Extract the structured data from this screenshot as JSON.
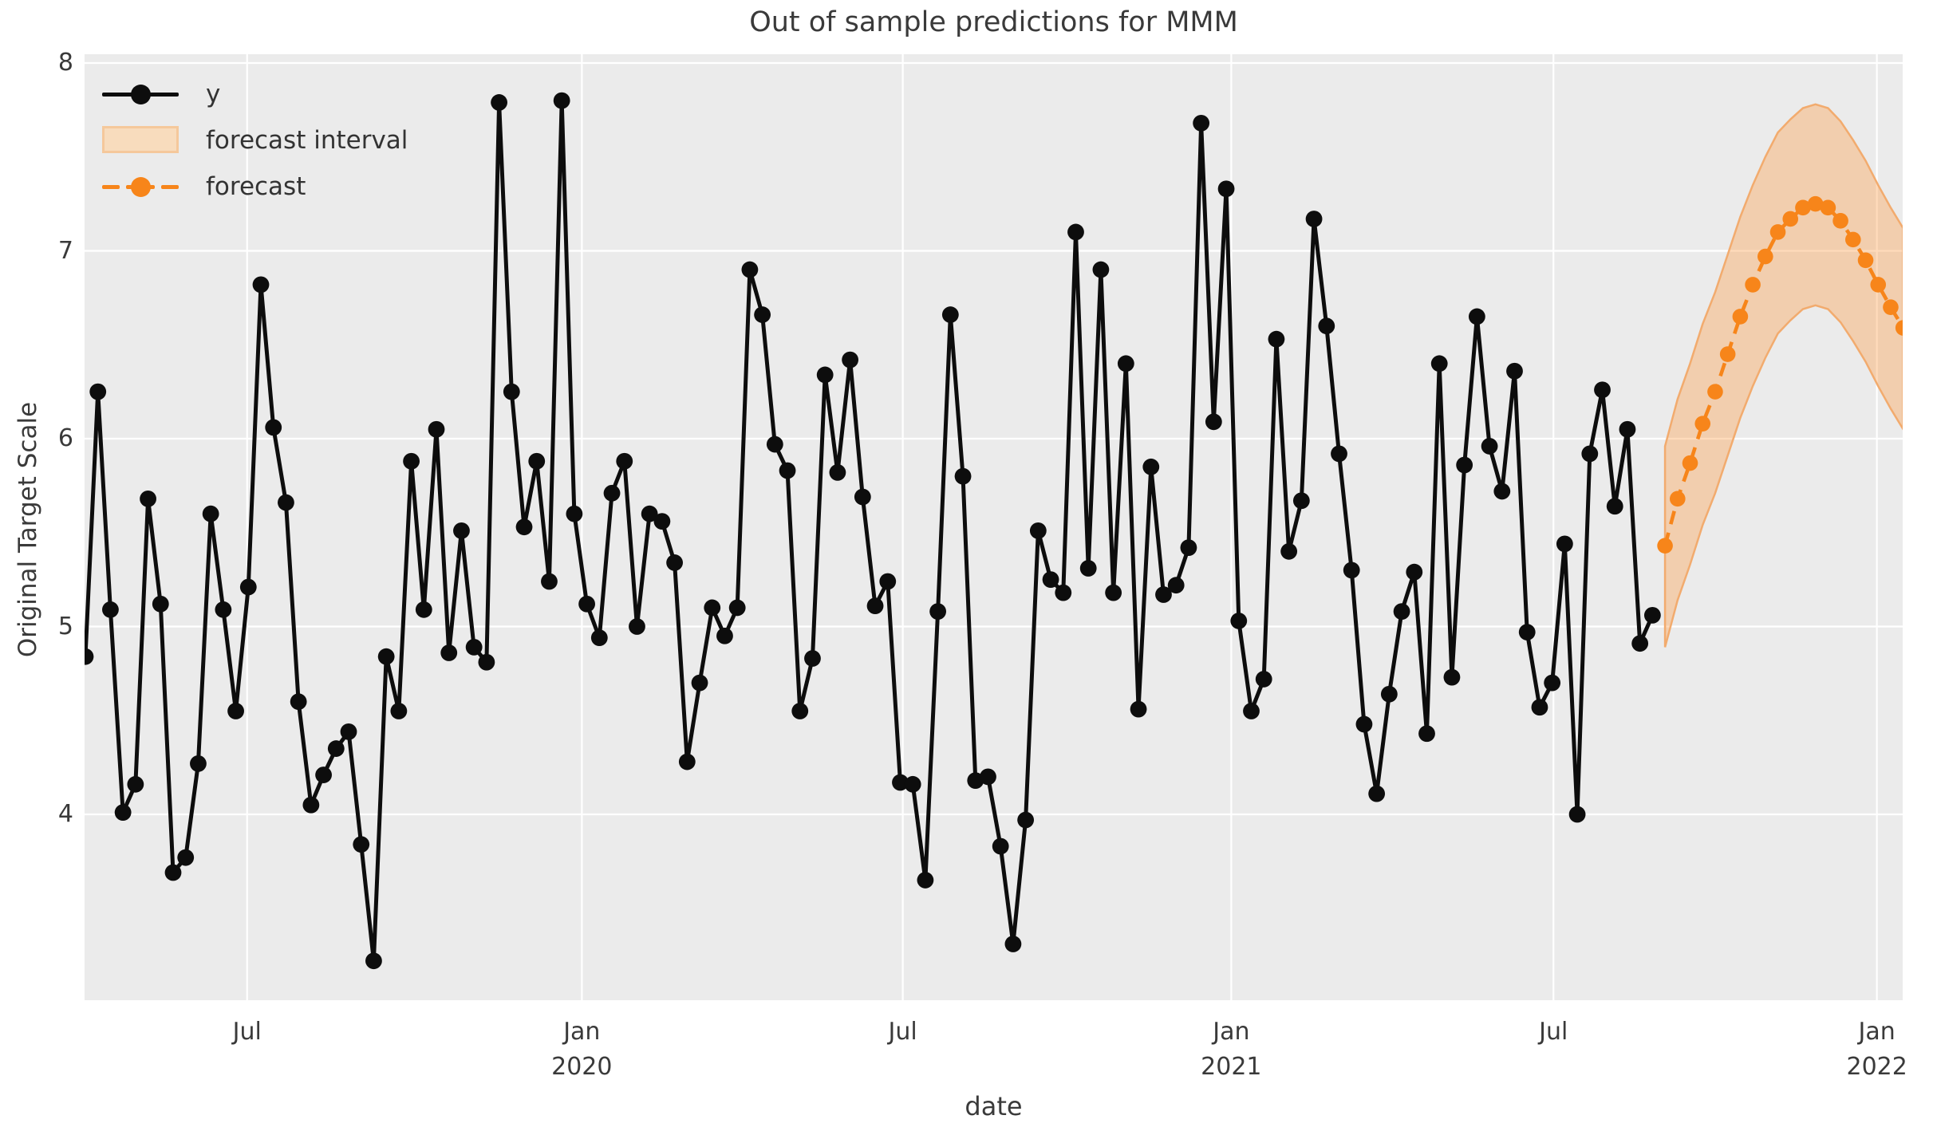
{
  "figure": {
    "title": "Out of sample predictions for MMM"
  },
  "legend": {
    "items": [
      {
        "label": "y",
        "type": "line-marker",
        "color": "#0d0d0d"
      },
      {
        "label": "forecast interval",
        "type": "patch",
        "fill": "#f8dcbd",
        "edge": "#f5c89b"
      },
      {
        "label": "forecast",
        "type": "dashed-marker",
        "color": "#f7851a"
      }
    ]
  },
  "chart_data": {
    "type": "line",
    "title": "Out of sample predictions for MMM",
    "xlabel": "date",
    "ylabel": "Original Target Scale",
    "grid": true,
    "legend_position": "upper left",
    "plot_bg": "#ebebeb",
    "grid_color": "#ffffff",
    "ylim": [
      3.0,
      8.05
    ],
    "y_ticks": [
      4,
      5,
      6,
      7,
      8
    ],
    "x_ticks": [
      {
        "week": 12.9,
        "lines": [
          "Jul"
        ]
      },
      {
        "week": 39.6,
        "lines": [
          "Jan",
          "2020"
        ]
      },
      {
        "week": 65.2,
        "lines": [
          "Jul"
        ]
      },
      {
        "week": 91.4,
        "lines": [
          "Jan",
          "2021"
        ]
      },
      {
        "week": 117.1,
        "lines": [
          "Jul"
        ]
      },
      {
        "week": 142.9,
        "lines": [
          "Jan",
          "2022"
        ]
      }
    ],
    "series": [
      {
        "name": "y",
        "style": "solid",
        "color": "#0d0d0d",
        "marker": true,
        "start_week": 0,
        "values": [
          4.84,
          6.25,
          5.09,
          4.01,
          4.16,
          5.68,
          5.12,
          3.69,
          3.77,
          4.27,
          5.6,
          5.09,
          4.55,
          5.21,
          6.82,
          6.06,
          5.66,
          4.6,
          4.05,
          4.21,
          4.35,
          4.44,
          3.84,
          3.22,
          4.84,
          4.55,
          5.88,
          5.09,
          6.05,
          4.86,
          5.51,
          4.89,
          4.81,
          7.79,
          6.25,
          5.53,
          5.88,
          5.24,
          7.8,
          5.6,
          5.12,
          4.94,
          5.71,
          5.88,
          5.0,
          5.6,
          5.56,
          5.34,
          4.28,
          4.7,
          5.1,
          4.95,
          5.1,
          6.9,
          6.66,
          5.97,
          5.83,
          4.55,
          4.83,
          6.34,
          5.82,
          6.42,
          5.69,
          5.11,
          5.24,
          4.17,
          4.16,
          3.65,
          5.08,
          6.66,
          5.8,
          4.18,
          4.2,
          3.83,
          3.31,
          3.97,
          5.51,
          5.25,
          5.18,
          7.1,
          5.31,
          6.9,
          5.18,
          6.4,
          4.56,
          5.85,
          5.17,
          5.22,
          5.42,
          7.68,
          6.09,
          7.33,
          5.03,
          4.55,
          4.72,
          6.53,
          5.4,
          5.67,
          7.17,
          6.6,
          5.92,
          5.3,
          4.48,
          4.11,
          4.64,
          5.08,
          5.29,
          4.43,
          6.4,
          4.73,
          5.86,
          6.65,
          5.96,
          5.72,
          6.36,
          4.97,
          4.57,
          4.7,
          5.44,
          4.0,
          5.92,
          6.26,
          5.64,
          6.05,
          4.91,
          5.06
        ]
      },
      {
        "name": "forecast",
        "style": "dashed",
        "color": "#f7851a",
        "marker": true,
        "start_week": 126,
        "values": [
          5.43,
          5.68,
          5.87,
          6.08,
          6.25,
          6.45,
          6.65,
          6.82,
          6.97,
          7.1,
          7.17,
          7.23,
          7.25,
          7.23,
          7.16,
          7.06,
          6.95,
          6.82,
          6.7,
          6.59
        ]
      }
    ],
    "band": {
      "name": "forecast interval",
      "start_week": 126,
      "fill": "#ffa04d",
      "fill_opacity": 0.38,
      "edge": "#f2ab6e",
      "lower": [
        4.89,
        5.14,
        5.33,
        5.54,
        5.71,
        5.91,
        6.11,
        6.28,
        6.43,
        6.56,
        6.63,
        6.69,
        6.71,
        6.69,
        6.62,
        6.52,
        6.41,
        6.28,
        6.16,
        6.05
      ],
      "upper": [
        5.96,
        6.21,
        6.4,
        6.61,
        6.78,
        6.98,
        7.18,
        7.35,
        7.5,
        7.63,
        7.7,
        7.76,
        7.78,
        7.76,
        7.69,
        7.59,
        7.48,
        7.35,
        7.23,
        7.12
      ]
    }
  }
}
